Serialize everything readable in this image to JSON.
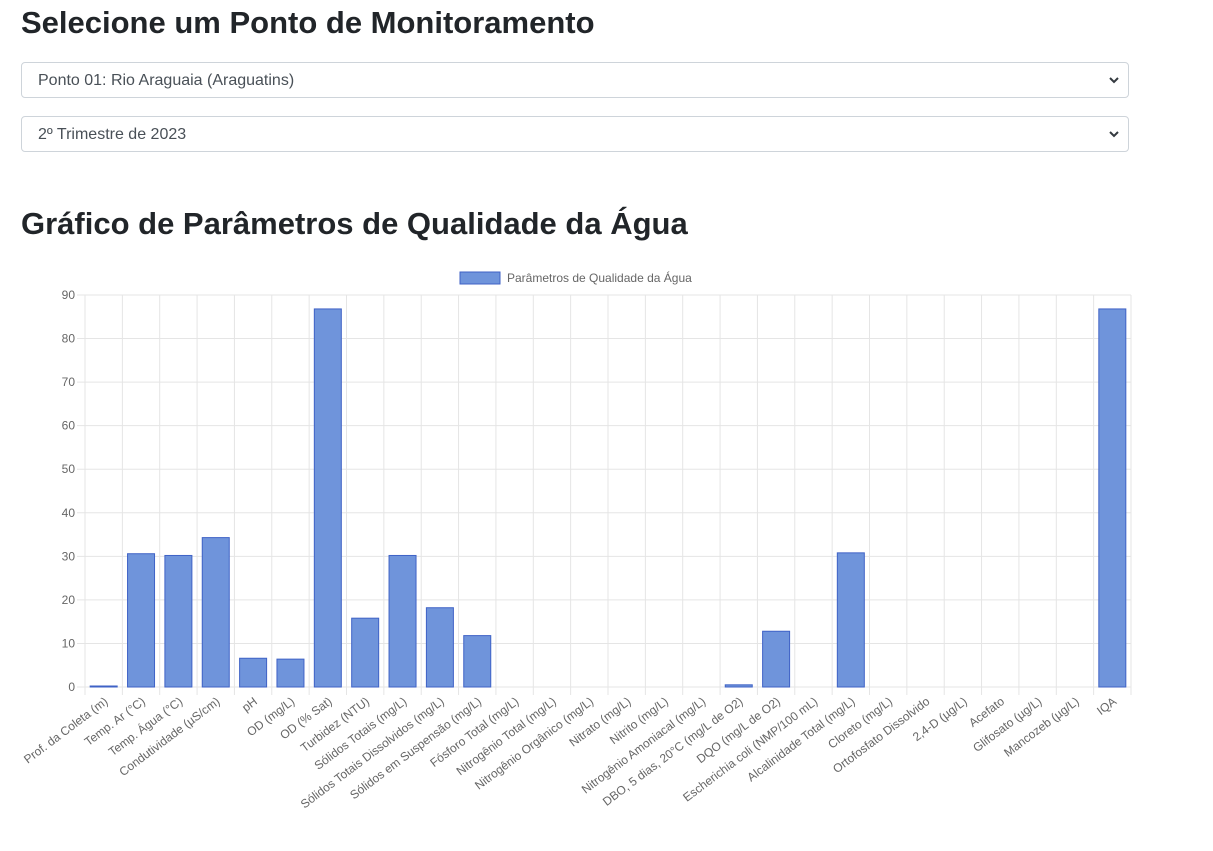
{
  "header": {
    "title": "Selecione um Ponto de Monitoramento"
  },
  "point_select": {
    "value": "Ponto 01: Rio Araguaia (Araguatins)"
  },
  "quarter_select": {
    "value": "2º Trimestre de 2023"
  },
  "chart_section": {
    "title": "Gráfico de Parâmetros de Qualidade da Água"
  },
  "colors": {
    "bar_fill": "#6f94db",
    "bar_border": "#3f62c6",
    "grid": "#e5e5e5",
    "text": "#666666"
  },
  "chart_data": {
    "type": "bar",
    "title": "",
    "xlabel": "",
    "ylabel": "",
    "ylim": [
      0,
      90
    ],
    "yticks": [
      0,
      10,
      20,
      30,
      40,
      50,
      60,
      70,
      80,
      90
    ],
    "grid": true,
    "legend_position": "top",
    "categories": [
      "Prof. da Coleta (m)",
      "Temp. Ar (°C)",
      "Temp. Água (°C)",
      "Condutividade (µS/cm)",
      "pH",
      "OD (mg/L)",
      "OD (% Sat)",
      "Turbidez (NTU)",
      "Sólidos Totais (mg/L)",
      "Sólidos Totais Dissolvidos (mg/L)",
      "Sólidos em Suspensão (mg/L)",
      "Fósforo Total (mg/L)",
      "Nitrogênio Total (mg/L)",
      "Nitrogênio Orgânico (mg/L)",
      "Nitrato (mg/L)",
      "Nitrito (mg/L)",
      "Nitrogênio Amoniacal (mg/L)",
      "DBO, 5 dias, 20°C (mg/L de O2)",
      "DQO (mg/L de O2)",
      "Escherichia coli (NMP/100 mL)",
      "Alcalinidade Total (mg/L)",
      "Cloreto (mg/L)",
      "Ortofosfato Dissolvido",
      "2,4-D (µg/L)",
      "Acefato",
      "Glifosato (µg/L)",
      "Mancozeb (µg/L)",
      "IQA"
    ],
    "series": [
      {
        "name": "Parâmetros de Qualidade da Água",
        "values": [
          0.2,
          30.6,
          30.2,
          34.3,
          6.6,
          6.4,
          86.8,
          15.8,
          30.2,
          18.2,
          11.8,
          0,
          0,
          0,
          0,
          0,
          0,
          0.5,
          12.8,
          0,
          30.8,
          0,
          0,
          0,
          0,
          0,
          0,
          86.8
        ]
      }
    ]
  }
}
